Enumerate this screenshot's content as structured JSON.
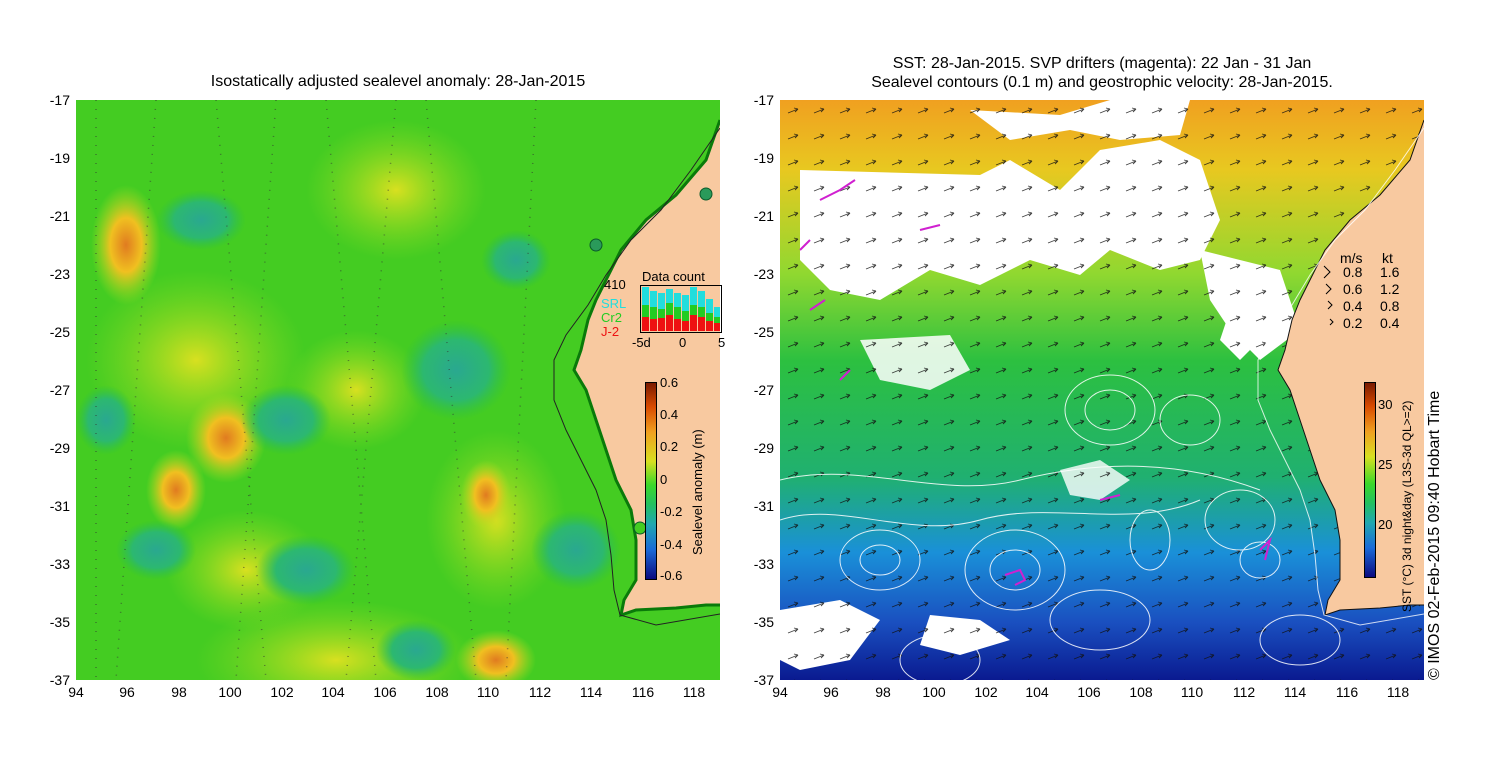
{
  "left_panel": {
    "title": "Isostatically adjusted sealevel anomaly: 28-Jan-2015",
    "y_ticks": [
      "-17",
      "-19",
      "-21",
      "-23",
      "-25",
      "-27",
      "-29",
      "-31",
      "-33",
      "-35",
      "-37"
    ],
    "x_ticks": [
      "94",
      "96",
      "98",
      "100",
      "102",
      "104",
      "106",
      "108",
      "110",
      "112",
      "114",
      "116",
      "118"
    ],
    "colorbar": {
      "label": "Sealevel anomaly (m)",
      "ticks": [
        "0.6",
        "0.4",
        "0.2",
        "0",
        "-0.2",
        "-0.4",
        "-0.6"
      ]
    },
    "data_count": {
      "title": "Data count",
      "max_label": "410",
      "sources": [
        "SRL",
        "Cr2",
        "J-2"
      ],
      "source_colors": [
        "#22dddd",
        "#22cc22",
        "#ee1111"
      ],
      "x_ticks": [
        "-5d",
        "0",
        "5"
      ]
    }
  },
  "right_panel": {
    "title_line1": "SST: 28-Jan-2015. SVP drifters (magenta): 22 Jan - 31 Jan",
    "title_line2": "Sealevel contours (0.1 m) and geostrophic velocity: 28-Jan-2015.",
    "y_ticks": [
      "-17",
      "-19",
      "-21",
      "-23",
      "-25",
      "-27",
      "-29",
      "-31",
      "-33",
      "-35",
      "-37"
    ],
    "x_ticks": [
      "94",
      "96",
      "98",
      "100",
      "102",
      "104",
      "106",
      "108",
      "110",
      "112",
      "114",
      "116",
      "118"
    ],
    "velocity_legend": {
      "header_ms": "m/s",
      "header_kt": "kt",
      "rows": [
        [
          "0.8",
          "1.6"
        ],
        [
          "0.6",
          "1.2"
        ],
        [
          "0.4",
          "0.8"
        ],
        [
          "0.2",
          "0.4"
        ]
      ]
    },
    "colorbar": {
      "label": "SST (°C) 3d night&day (L3S-3d QL>=2)",
      "ticks": [
        "30",
        "25",
        "20"
      ]
    }
  },
  "credit": "© IMOS 02-Feb-2015 09:40 Hobart Time",
  "colors": {
    "land": "#f8c9a0",
    "ocean_green": "#33cc33",
    "cloud": "#ffffff"
  }
}
